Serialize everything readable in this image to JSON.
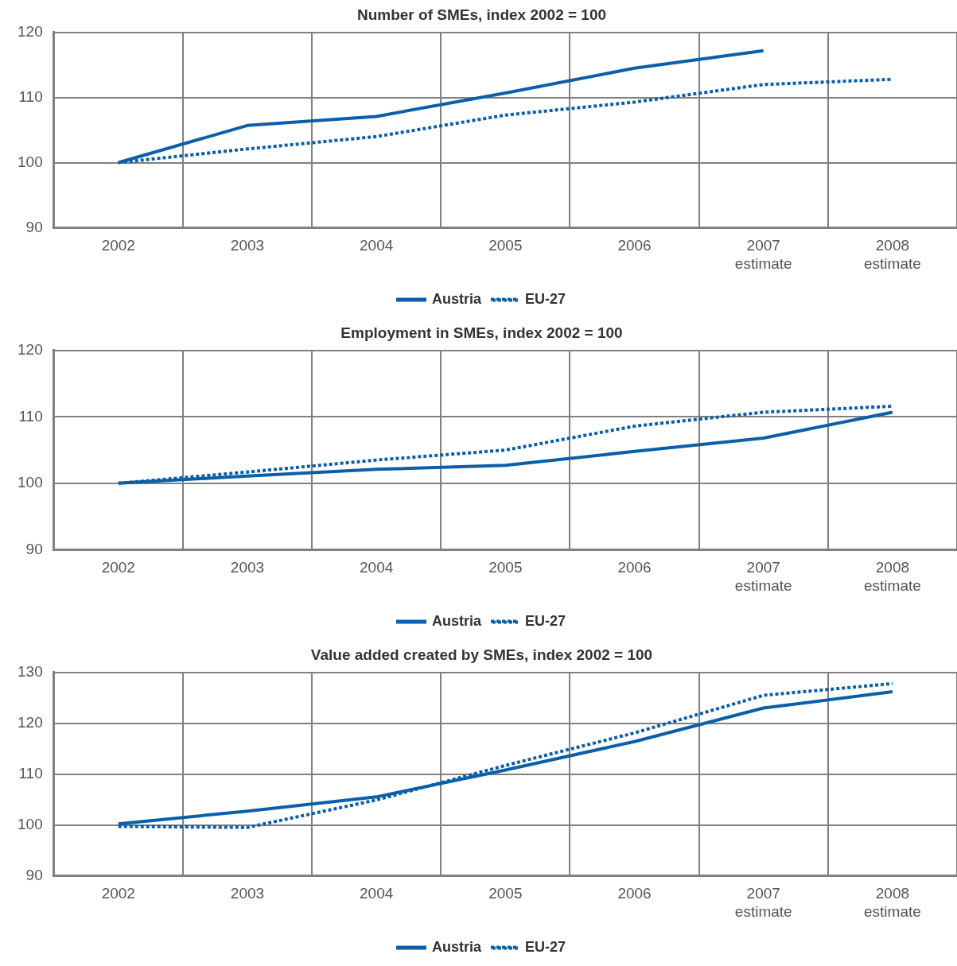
{
  "chart_data": [
    {
      "type": "line",
      "title": "Number of SMEs, index 2002 = 100",
      "categories": [
        "2002",
        "2003",
        "2004",
        "2005",
        "2006",
        "2007\nestimate",
        "2008\nestimate"
      ],
      "ylim": [
        90,
        120
      ],
      "yticks": [
        90,
        100,
        110,
        120
      ],
      "grid": true,
      "legend": "bottom",
      "marker": "none",
      "series": [
        {
          "name": "Austria",
          "color": "#0a5fa8",
          "line_style": "solid",
          "values": [
            100,
            105.7,
            107.1,
            110.7,
            114.5,
            117.2,
            null
          ]
        },
        {
          "name": "EU-27",
          "color": "#0a5fa8",
          "line_style": "dotted",
          "values": [
            100,
            102.1,
            104.0,
            107.3,
            109.3,
            112.0,
            112.8
          ]
        }
      ]
    },
    {
      "type": "line",
      "title": "Employment in SMEs, index 2002 = 100",
      "categories": [
        "2002",
        "2003",
        "2004",
        "2005",
        "2006",
        "2007\nestimate",
        "2008\nestimate"
      ],
      "ylim": [
        90,
        120
      ],
      "yticks": [
        90,
        100,
        110,
        120
      ],
      "grid": true,
      "legend": "bottom",
      "marker": "none",
      "series": [
        {
          "name": "Austria",
          "color": "#0a5fa8",
          "line_style": "solid",
          "values": [
            100,
            101.1,
            102.1,
            102.7,
            104.8,
            106.8,
            110.7
          ]
        },
        {
          "name": "EU-27",
          "color": "#0a5fa8",
          "line_style": "dotted",
          "values": [
            100,
            101.7,
            103.5,
            105.0,
            108.6,
            110.7,
            111.6
          ]
        }
      ]
    },
    {
      "type": "line",
      "title": "Value added created by SMEs, index 2002 = 100",
      "categories": [
        "2002",
        "2003",
        "2004",
        "2005",
        "2006",
        "2007\nestimate",
        "2008\nestimate"
      ],
      "ylim": [
        90,
        130
      ],
      "yticks": [
        90,
        100,
        110,
        120,
        130
      ],
      "grid": true,
      "legend": "bottom",
      "marker": "none",
      "series": [
        {
          "name": "Austria",
          "color": "#0a5fa8",
          "line_style": "solid",
          "values": [
            100.2,
            102.7,
            105.5,
            110.8,
            116.4,
            123.0,
            126.2
          ]
        },
        {
          "name": "EU-27",
          "color": "#0a5fa8",
          "line_style": "dotted",
          "values": [
            99.7,
            99.5,
            104.9,
            111.7,
            118.1,
            125.5,
            127.8
          ]
        }
      ]
    }
  ]
}
